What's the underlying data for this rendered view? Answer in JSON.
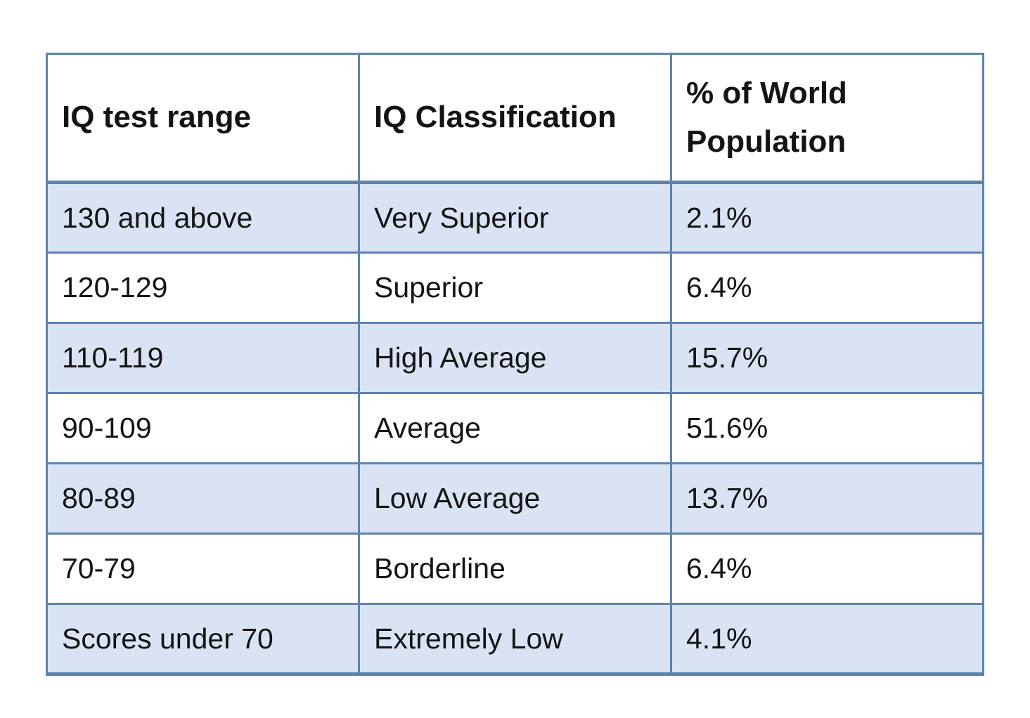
{
  "chart_data": {
    "type": "table",
    "columns": [
      "IQ test range",
      "IQ Classification",
      "% of World Population"
    ],
    "rows": [
      [
        "130 and above",
        "Very Superior",
        "2.1%"
      ],
      [
        "120-129",
        "Superior",
        "6.4%"
      ],
      [
        "110-119",
        "High Average",
        "15.7%"
      ],
      [
        "90-109",
        "Average",
        "51.6%"
      ],
      [
        "80-89",
        "Low Average",
        "13.7%"
      ],
      [
        "70-79",
        "Borderline",
        "6.4%"
      ],
      [
        "Scores under 70",
        "Extremely Low",
        "4.1%"
      ]
    ],
    "layout": {
      "header_background": "white",
      "row_striping": "odd rows shaded light blue, even rows white",
      "grid": "on"
    }
  },
  "colors": {
    "border": "#5b83b0",
    "row_shaded": "#dae3f3",
    "row_plain": "#ffffff",
    "header_bg": "#ffffff",
    "text": "#141414"
  }
}
